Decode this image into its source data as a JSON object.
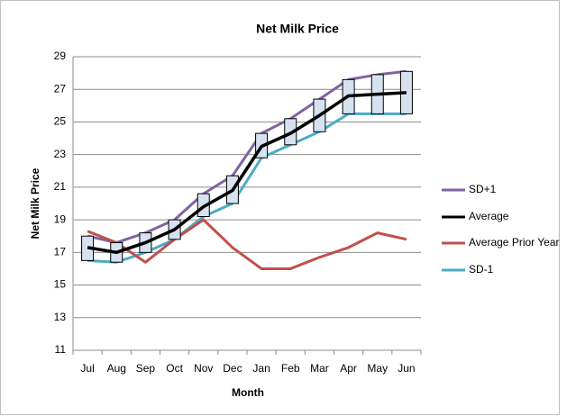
{
  "chart_data": {
    "type": "line",
    "title": "Net Milk Price",
    "x_label": "Month",
    "y_label": "Net Milk Price",
    "categories": [
      "Jul",
      "Aug",
      "Sep",
      "Oct",
      "Nov",
      "Dec",
      "Jan",
      "Feb",
      "Mar",
      "Apr",
      "May",
      "Jun"
    ],
    "series": [
      {
        "name": "SD+1",
        "color": "#8064a2",
        "values": [
          18.0,
          17.6,
          18.2,
          19.0,
          20.6,
          21.7,
          24.3,
          25.2,
          26.4,
          27.6,
          27.9,
          28.1
        ]
      },
      {
        "name": "Average",
        "color": "#000000",
        "values": [
          17.3,
          17.0,
          17.6,
          18.4,
          19.8,
          20.8,
          23.5,
          24.3,
          25.4,
          26.6,
          26.7,
          26.8
        ]
      },
      {
        "name": "Average Prior Year",
        "color": "#c0504d",
        "values": [
          18.3,
          17.6,
          16.4,
          17.8,
          19.0,
          17.3,
          16.0,
          16.0,
          16.7,
          17.3,
          18.2,
          17.8
        ]
      },
      {
        "name": "SD-1",
        "color": "#4bacc6",
        "values": [
          16.5,
          16.4,
          17.0,
          17.8,
          19.2,
          20.0,
          22.8,
          23.6,
          24.4,
          25.5,
          25.5,
          25.5
        ]
      }
    ],
    "box_color": "#d6e2f0",
    "ylim": [
      11,
      29
    ],
    "yticks": [
      11,
      13,
      15,
      17,
      19,
      21,
      23,
      25,
      27,
      29
    ],
    "grid": true,
    "legend": "right"
  }
}
